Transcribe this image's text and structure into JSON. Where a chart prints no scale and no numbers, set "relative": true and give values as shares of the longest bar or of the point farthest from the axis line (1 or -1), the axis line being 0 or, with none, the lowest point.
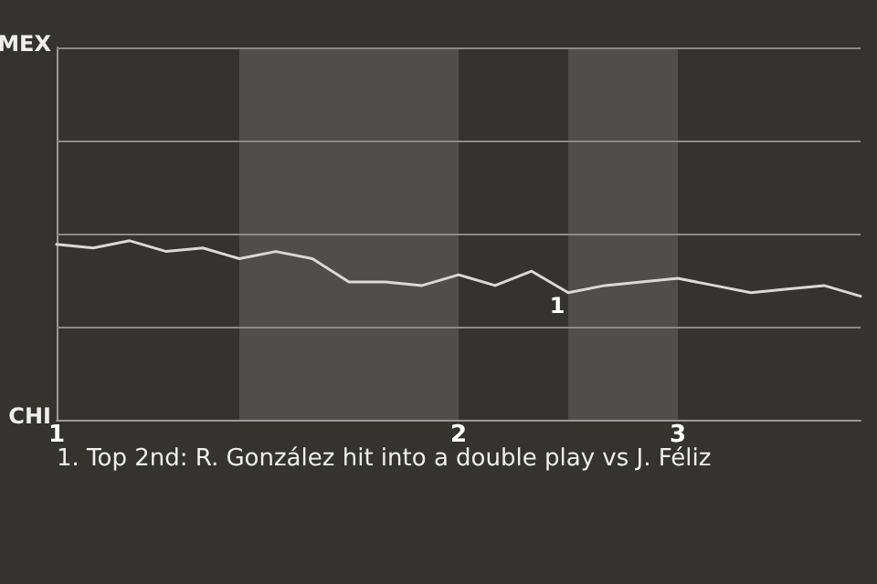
{
  "chart_data": {
    "type": "line",
    "relative": true,
    "categories": [
      "1",
      null,
      null,
      null,
      null,
      null,
      null,
      null,
      null,
      null,
      null,
      "2",
      null,
      null,
      null,
      null,
      null,
      "3",
      null,
      null,
      null,
      null,
      null
    ],
    "series": [
      {
        "color": "#d9d9d9",
        "values": [
          0.98,
          0.96,
          1,
          0.94,
          0.96,
          0.9,
          0.94,
          0.9,
          0.77,
          0.77,
          0.75,
          0.81,
          0.75,
          0.83,
          0.71,
          0.75,
          0.77,
          0.79,
          0.75,
          0.71,
          0.73,
          0.75,
          0.69
        ]
      }
    ],
    "marker": "none",
    "line_style": "solid",
    "ref_lines": [
      {
        "axis": "y",
        "value": 0.52,
        "color": "#8a8a8a",
        "line_style": "solid"
      },
      {
        "axis": "y",
        "value": 1.04,
        "color": "#8a8a8a",
        "line_style": "solid"
      },
      {
        "axis": "y",
        "value": 1.56,
        "color": "#8a8a8a",
        "line_style": "solid"
      },
      {
        "axis": "y",
        "value": 2.08,
        "color": "#8a8a8a",
        "line_style": "solid"
      }
    ],
    "annotations": [
      {
        "text": "1",
        "y": 0.71
      },
      "MEX",
      "CHI",
      "1. Top 2nd: R. González hit into a double play vs J. Féliz"
    ]
  }
}
